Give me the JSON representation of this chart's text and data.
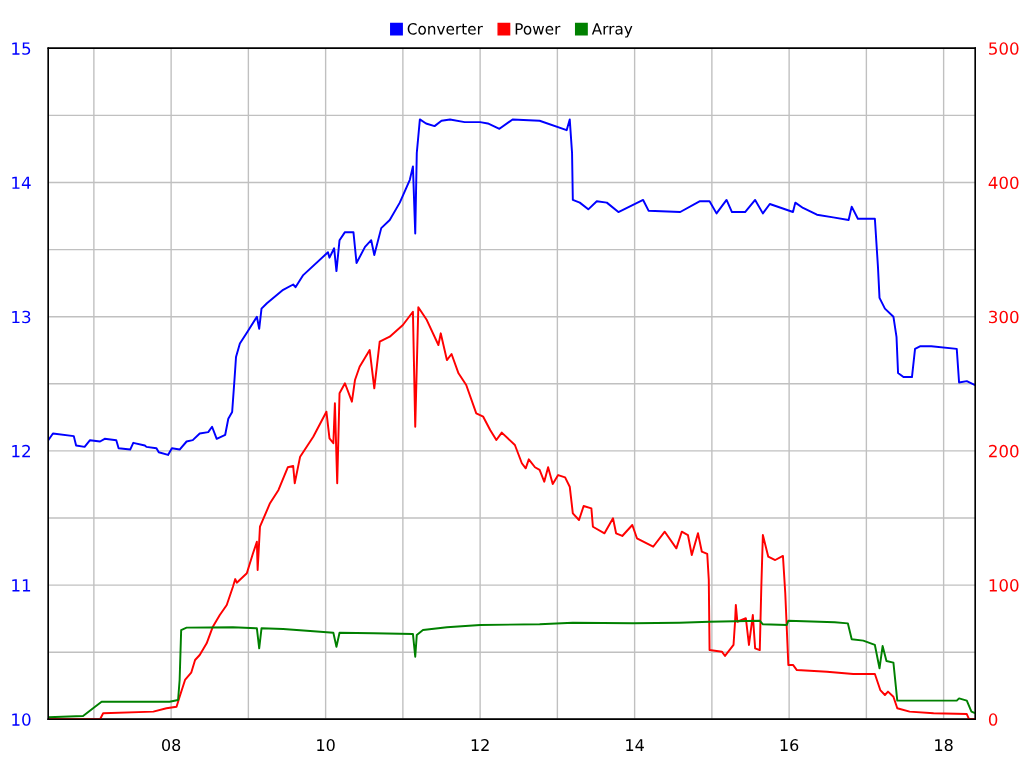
{
  "chart_data": {
    "type": "line",
    "series": [
      {
        "name": "Converter",
        "color": "#0000ff",
        "x": [
          6.41,
          6.47,
          6.74,
          6.77,
          6.88,
          6.95,
          7.08,
          7.14,
          7.29,
          7.32,
          7.47,
          7.51,
          7.66,
          7.68,
          7.81,
          7.84,
          7.96,
          8.01,
          8.11,
          8.2,
          8.28,
          8.37,
          8.48,
          8.53,
          8.59,
          8.7,
          8.74,
          8.79,
          8.82,
          8.84,
          8.89,
          8.98,
          9.11,
          9.14,
          9.17,
          9.24,
          9.45,
          9.58,
          9.61,
          9.71,
          10.03,
          10.05,
          10.11,
          10.14,
          10.18,
          10.25,
          10.36,
          10.4,
          10.51,
          10.59,
          10.63,
          10.72,
          10.83,
          10.96,
          11.09,
          11.13,
          11.16,
          11.18,
          11.22,
          11.3,
          11.41,
          11.5,
          11.61,
          11.8,
          12.0,
          12.1,
          12.25,
          12.42,
          12.77,
          13.12,
          13.16,
          13.19,
          13.2,
          13.29,
          13.4,
          13.51,
          13.64,
          13.79,
          14.11,
          14.18,
          14.59,
          14.84,
          14.97,
          15.06,
          15.19,
          15.26,
          15.43,
          15.56,
          15.66,
          15.75,
          16.05,
          16.08,
          16.18,
          16.36,
          16.57,
          16.77,
          16.81,
          16.89,
          17.11,
          17.15,
          17.17,
          17.24,
          17.35,
          17.39,
          17.41,
          17.48,
          17.59,
          17.63,
          17.7,
          17.84,
          18.17,
          18.2,
          18.3,
          18.41
        ],
        "values": [
          12.08,
          12.13,
          12.11,
          12.04,
          12.03,
          12.08,
          12.07,
          12.09,
          12.08,
          12.02,
          12.01,
          12.06,
          12.04,
          12.03,
          12.02,
          11.99,
          11.97,
          12.02,
          12.01,
          12.07,
          12.08,
          12.13,
          12.14,
          12.18,
          12.09,
          12.12,
          12.24,
          12.29,
          12.53,
          12.7,
          12.8,
          12.88,
          13.0,
          12.91,
          13.06,
          13.1,
          13.2,
          13.24,
          13.22,
          13.31,
          13.48,
          13.44,
          13.51,
          13.34,
          13.57,
          13.63,
          13.63,
          13.4,
          13.52,
          13.57,
          13.46,
          13.66,
          13.72,
          13.85,
          14.02,
          14.12,
          13.62,
          14.22,
          14.47,
          14.44,
          14.42,
          14.46,
          14.47,
          14.45,
          14.45,
          14.44,
          14.4,
          14.47,
          14.46,
          14.39,
          14.47,
          14.22,
          13.87,
          13.85,
          13.8,
          13.86,
          13.85,
          13.78,
          13.87,
          13.79,
          13.78,
          13.86,
          13.86,
          13.77,
          13.87,
          13.78,
          13.78,
          13.87,
          13.77,
          13.84,
          13.78,
          13.85,
          13.81,
          13.76,
          13.74,
          13.72,
          13.82,
          13.73,
          13.73,
          13.37,
          13.14,
          13.06,
          13.0,
          12.85,
          12.58,
          12.55,
          12.55,
          12.76,
          12.78,
          12.78,
          12.76,
          12.51,
          12.52,
          12.49
        ]
      },
      {
        "name": "Power",
        "color": "#ff0000",
        "axis": "y2",
        "x": [
          6.41,
          7.08,
          7.12,
          7.77,
          7.94,
          8.07,
          8.11,
          8.18,
          8.26,
          8.31,
          8.37,
          8.46,
          8.54,
          8.63,
          8.72,
          8.8,
          8.83,
          8.85,
          8.98,
          9.06,
          9.11,
          9.12,
          9.15,
          9.28,
          9.39,
          9.51,
          9.58,
          9.6,
          9.67,
          9.84,
          10.01,
          10.05,
          10.1,
          10.12,
          10.15,
          10.18,
          10.25,
          10.34,
          10.38,
          10.44,
          10.57,
          10.63,
          10.7,
          10.83,
          11.0,
          11.13,
          11.16,
          11.2,
          11.31,
          11.46,
          11.49,
          11.57,
          11.63,
          11.72,
          11.82,
          11.95,
          12.04,
          12.13,
          12.21,
          12.28,
          12.45,
          12.54,
          12.59,
          12.63,
          12.71,
          12.77,
          12.83,
          12.88,
          12.94,
          13.01,
          13.1,
          13.16,
          13.2,
          13.28,
          13.34,
          13.44,
          13.46,
          13.61,
          13.72,
          13.76,
          13.84,
          13.97,
          14.03,
          14.24,
          14.39,
          14.54,
          14.61,
          14.69,
          14.74,
          14.82,
          14.87,
          14.94,
          14.96,
          14.97,
          15.13,
          15.17,
          15.28,
          15.3,
          15.31,
          15.33,
          15.44,
          15.48,
          15.53,
          15.56,
          15.62,
          15.64,
          15.66,
          15.73,
          15.82,
          15.92,
          15.95,
          15.99,
          16.05,
          16.1,
          16.49,
          16.83,
          17.11,
          17.18,
          17.24,
          17.28,
          17.35,
          17.4,
          17.56,
          17.87,
          18.3,
          18.33,
          18.41
        ],
        "values": [
          0,
          0,
          4.5,
          5.7,
          8.2,
          9.4,
          16.8,
          29.3,
          34.7,
          44.2,
          47.9,
          56.6,
          69,
          77.7,
          85.2,
          98.8,
          104.5,
          101.8,
          108.8,
          123.7,
          132.3,
          111.3,
          143.5,
          161,
          170.9,
          187.8,
          188.7,
          175.9,
          195.7,
          210.6,
          229.2,
          209.4,
          205.7,
          235.5,
          175.9,
          243,
          250.4,
          236.7,
          252.8,
          262.7,
          275.2,
          246.6,
          281.4,
          285.1,
          293.8,
          303.7,
          218,
          307,
          297.5,
          278.9,
          287.6,
          267.7,
          272.2,
          257.8,
          249.1,
          228,
          225.5,
          215.6,
          208.1,
          213.6,
          204.4,
          190.8,
          187,
          193.7,
          187.8,
          185.8,
          177.1,
          187.8,
          175.3,
          182,
          180.3,
          173.3,
          153.5,
          148.5,
          158.9,
          157.2,
          143.5,
          138.6,
          149.8,
          138.6,
          136.6,
          144.8,
          134.9,
          128.6,
          139.8,
          127.4,
          139.8,
          137.3,
          122.4,
          138.6,
          124.9,
          123.2,
          103.8,
          51.6,
          50.4,
          47.2,
          55.4,
          72.7,
          85.2,
          72.7,
          75.3,
          55.4,
          77.7,
          52.9,
          51.6,
          98.8,
          137.3,
          121.2,
          118.7,
          121.7,
          93.9,
          40.5,
          40.5,
          36.7,
          35.5,
          33.8,
          33.8,
          21.8,
          18.1,
          20.6,
          16.8,
          8.2,
          5.7,
          4.5,
          3.9,
          0,
          0
        ]
      },
      {
        "name": "Array",
        "color": "#008000",
        "axis": "y2",
        "x": [
          6.41,
          6.86,
          6.99,
          7.1,
          7.98,
          8.09,
          8.11,
          8.13,
          8.2,
          8.8,
          9.11,
          9.14,
          9.17,
          9.45,
          9.93,
          10.1,
          10.14,
          10.18,
          10.62,
          11.13,
          11.16,
          11.18,
          11.26,
          11.57,
          12.0,
          12.77,
          13.2,
          13.98,
          14.58,
          14.97,
          15.62,
          15.66,
          15.97,
          15.99,
          16.59,
          16.76,
          16.81,
          16.96,
          17.11,
          17.17,
          17.21,
          17.26,
          17.35,
          17.4,
          18.17,
          18.2,
          18.3,
          18.36,
          18.41
        ],
        "values": [
          1.5,
          2.5,
          8.2,
          13.1,
          13.1,
          14.4,
          29.3,
          66.5,
          68.3,
          68.6,
          67.8,
          52.9,
          67.8,
          67.3,
          65.3,
          64.5,
          54.1,
          64.5,
          64.1,
          63.6,
          46.6,
          62.8,
          66.5,
          68.6,
          70.3,
          70.8,
          72,
          71.5,
          72,
          72.7,
          73.5,
          70.8,
          70.3,
          73.5,
          72.3,
          71.5,
          59.6,
          58.6,
          55.4,
          38,
          54.6,
          43.4,
          42.2,
          13.9,
          13.9,
          15.6,
          13.9,
          5.7,
          4.5
        ]
      }
    ],
    "xlim": [
      6.41,
      18.41
    ],
    "xticks": [
      {
        "value": 7,
        "label": null
      },
      {
        "value": 8,
        "label": "08"
      },
      {
        "value": 9,
        "label": null
      },
      {
        "value": 10,
        "label": "10"
      },
      {
        "value": 11,
        "label": null
      },
      {
        "value": 12,
        "label": "12"
      },
      {
        "value": 13,
        "label": null
      },
      {
        "value": 14,
        "label": "14"
      },
      {
        "value": 15,
        "label": null
      },
      {
        "value": 16,
        "label": "16"
      },
      {
        "value": 17,
        "label": null
      },
      {
        "value": 18,
        "label": "18"
      }
    ],
    "ylim": [
      10,
      15
    ],
    "yticks": [
      10,
      {
        "value": 10.5,
        "label": null
      },
      11,
      {
        "value": 11.5,
        "label": null
      },
      12,
      {
        "value": 12.5,
        "label": null
      },
      13,
      {
        "value": 13.5,
        "label": null
      },
      14,
      {
        "value": 14.5,
        "label": null
      },
      15
    ],
    "y2lim": [
      0,
      500
    ],
    "y2ticks": [
      0,
      100,
      200,
      300,
      400,
      500
    ],
    "grid": true,
    "legend": "top"
  }
}
